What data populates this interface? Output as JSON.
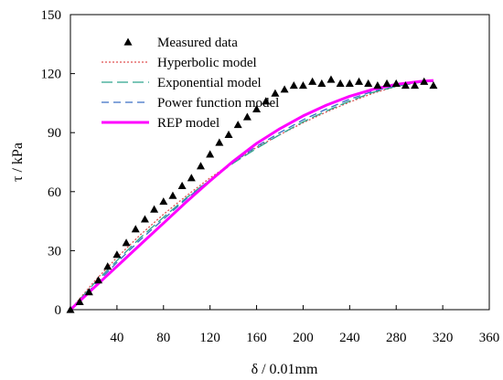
{
  "chart_data": {
    "type": "line",
    "xlabel": "δ / 0.01mm",
    "ylabel": "τ / kPa",
    "xlim": [
      0,
      360
    ],
    "ylim": [
      0,
      150
    ],
    "x_ticks": [
      40,
      80,
      120,
      160,
      200,
      240,
      280,
      320,
      360
    ],
    "y_ticks": [
      0,
      30,
      60,
      90,
      120,
      150
    ],
    "grid": false,
    "legend_position": "top-left",
    "series": [
      {
        "name": "Measured data",
        "kind": "scatter",
        "marker": "triangle",
        "color": "#000000",
        "x": [
          0,
          8,
          16,
          24,
          32,
          40,
          48,
          56,
          64,
          72,
          80,
          88,
          96,
          104,
          112,
          120,
          128,
          136,
          144,
          152,
          160,
          168,
          176,
          184,
          192,
          200,
          208,
          216,
          224,
          232,
          240,
          248,
          256,
          264,
          272,
          280,
          288,
          296,
          304,
          312
        ],
        "y": [
          0,
          4,
          9,
          15,
          22,
          28,
          34,
          41,
          46,
          51,
          55,
          58,
          63,
          67,
          73,
          79,
          85,
          89,
          94,
          98,
          102,
          106,
          110,
          112,
          114,
          114,
          116,
          115,
          117,
          115,
          115,
          116,
          115,
          114,
          115,
          115,
          114,
          114,
          116,
          114
        ]
      },
      {
        "name": "Hyperbolic model",
        "kind": "line",
        "dash": "dotted",
        "color": "#e05050",
        "x": [
          0,
          20,
          40,
          60,
          80,
          100,
          120,
          140,
          160,
          180,
          200,
          220,
          240,
          260,
          280,
          300,
          312
        ],
        "y": [
          0,
          14,
          26.5,
          38,
          48.5,
          58,
          67,
          75,
          82.5,
          89,
          95,
          100.5,
          105.5,
          110,
          113.5,
          116,
          116.5
        ]
      },
      {
        "name": "Exponential model",
        "kind": "line",
        "dash": "long-dash",
        "color": "#2ca58d",
        "x": [
          0,
          20,
          40,
          60,
          80,
          100,
          120,
          140,
          160,
          180,
          200,
          220,
          240,
          260,
          280,
          300,
          312
        ],
        "y": [
          0,
          13,
          25,
          36.5,
          47,
          57,
          66,
          74.5,
          82,
          89,
          95.5,
          101,
          106,
          110.5,
          113.5,
          115.5,
          116
        ]
      },
      {
        "name": "Power function model",
        "kind": "line",
        "dash": "dash",
        "color": "#3a6fc4",
        "x": [
          0,
          20,
          40,
          60,
          80,
          100,
          120,
          140,
          160,
          180,
          200,
          220,
          240,
          260,
          280,
          300,
          312
        ],
        "y": [
          0,
          12,
          24,
          35.5,
          46,
          56.5,
          66,
          75,
          83,
          90,
          96.5,
          102,
          107,
          111,
          114,
          116,
          116.5
        ]
      },
      {
        "name": "REP model",
        "kind": "line",
        "dash": "solid",
        "color": "#ff00ff",
        "x": [
          0,
          20,
          40,
          60,
          80,
          100,
          120,
          140,
          160,
          180,
          200,
          220,
          240,
          260,
          280,
          300,
          312
        ],
        "y": [
          0,
          11,
          22,
          33,
          44,
          55,
          65.5,
          75.5,
          84.5,
          92,
          98.5,
          104,
          108.5,
          112,
          114.5,
          116,
          116.5
        ]
      }
    ]
  }
}
